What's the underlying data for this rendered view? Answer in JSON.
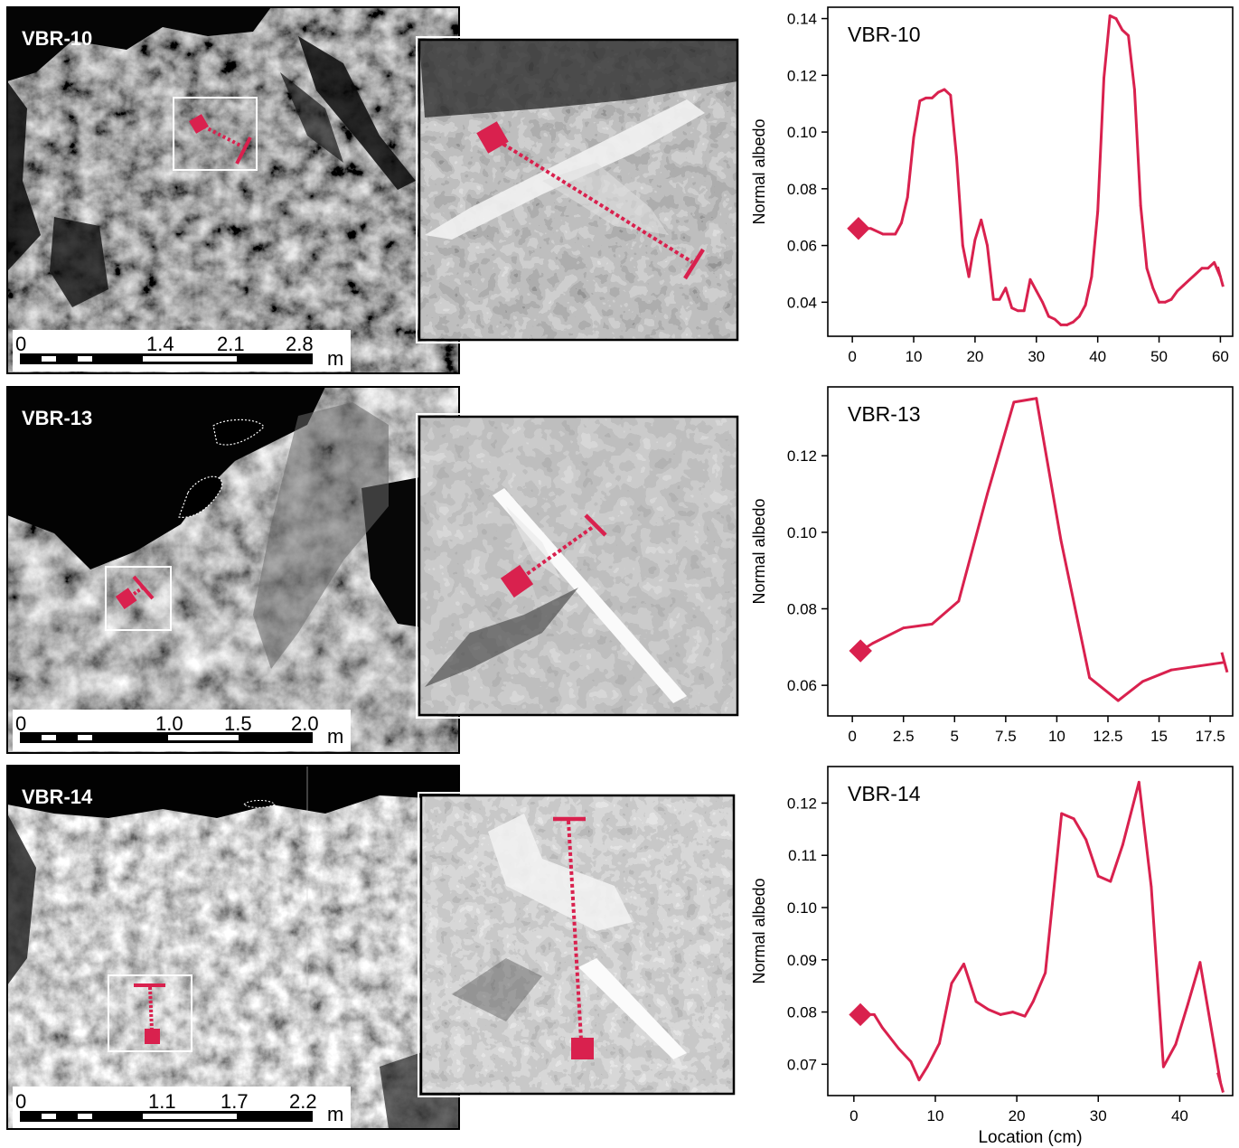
{
  "figure": {
    "accent_color": "#d9214e",
    "rows": [
      {
        "sample_label": "VBR-10",
        "scale_bar": {
          "ticks": [
            "0",
            "1.4",
            "2.1",
            "2.8"
          ],
          "unit": "m"
        }
      },
      {
        "sample_label": "VBR-13",
        "scale_bar": {
          "ticks": [
            "0",
            "1.0",
            "1.5",
            "2.0"
          ],
          "unit": "m"
        }
      },
      {
        "sample_label": "VBR-14",
        "scale_bar": {
          "ticks": [
            "0",
            "1.1",
            "1.7",
            "2.2"
          ],
          "unit": "m"
        }
      }
    ]
  },
  "chart_data": [
    {
      "type": "line",
      "title": "VBR-10",
      "xlabel": "",
      "ylabel": "Normal albedo",
      "xlim": [
        -4,
        62
      ],
      "ylim": [
        0.028,
        0.144
      ],
      "xticks": [
        "0",
        "10",
        "20",
        "30",
        "40",
        "50",
        "60"
      ],
      "yticks": [
        "0.04",
        "0.06",
        "0.08",
        "0.10",
        "0.12",
        "0.14"
      ],
      "color": "#d9214e",
      "x": [
        1,
        3,
        5,
        7,
        8,
        9,
        10,
        11,
        12,
        13,
        14,
        15,
        16,
        17,
        18,
        19,
        20,
        21,
        22,
        23,
        24,
        25,
        26,
        27,
        28,
        29,
        30,
        31,
        32,
        33,
        34,
        35,
        36,
        37,
        38,
        39,
        40,
        41,
        42,
        43,
        44,
        45,
        46,
        47,
        48,
        49,
        50,
        51,
        52,
        53,
        54,
        55,
        56,
        57,
        58,
        59,
        60
      ],
      "y": [
        0.066,
        0.066,
        0.064,
        0.064,
        0.068,
        0.077,
        0.098,
        0.111,
        0.112,
        0.112,
        0.114,
        0.115,
        0.113,
        0.091,
        0.06,
        0.049,
        0.062,
        0.069,
        0.06,
        0.041,
        0.041,
        0.045,
        0.038,
        0.037,
        0.037,
        0.048,
        0.044,
        0.04,
        0.035,
        0.034,
        0.032,
        0.032,
        0.033,
        0.035,
        0.039,
        0.049,
        0.072,
        0.119,
        0.141,
        0.14,
        0.136,
        0.134,
        0.115,
        0.074,
        0.052,
        0.045,
        0.04,
        0.04,
        0.041,
        0.044,
        0.046,
        0.048,
        0.05,
        0.052,
        0.052,
        0.054,
        0.049
      ]
    },
    {
      "type": "line",
      "title": "VBR-13",
      "xlabel": "",
      "ylabel": "Normal albedo",
      "xlim": [
        -1.2,
        18.6
      ],
      "ylim": [
        0.052,
        0.138
      ],
      "xticks": [
        "0",
        "2.5",
        "5",
        "7.5",
        "10",
        "12.5",
        "15",
        "17.5"
      ],
      "yticks": [
        "0.06",
        "0.08",
        "0.10",
        "0.12"
      ],
      "color": "#d9214e",
      "x": [
        0.4,
        1.0,
        2.5,
        3.9,
        5.2,
        6.6,
        7.9,
        9.0,
        10.2,
        11.6,
        13.0,
        14.2,
        15.6,
        18.2
      ],
      "y": [
        0.069,
        0.071,
        0.075,
        0.076,
        0.082,
        0.11,
        0.134,
        0.135,
        0.098,
        0.062,
        0.056,
        0.061,
        0.064,
        0.066
      ]
    },
    {
      "type": "line",
      "title": "VBR-14",
      "xlabel": "Location (cm)",
      "ylabel": "Normal albedo",
      "xlim": [
        -3.2,
        46.5
      ],
      "ylim": [
        0.064,
        0.127
      ],
      "xticks": [
        "0",
        "10",
        "20",
        "30",
        "40"
      ],
      "yticks": [
        "0.07",
        "0.08",
        "0.09",
        "0.10",
        "0.11",
        "0.12"
      ],
      "color": "#d9214e",
      "x": [
        0.8,
        2.5,
        3.5,
        5.5,
        7.0,
        8.0,
        9.0,
        10.5,
        12.0,
        13.5,
        15.0,
        16.5,
        18.0,
        19.5,
        21.0,
        22.0,
        23.5,
        25.5,
        27.0,
        28.5,
        30.0,
        31.5,
        33.0,
        35.0,
        36.5,
        38.0,
        39.5,
        41.0,
        42.5,
        45.0
      ],
      "y": [
        0.0795,
        0.0795,
        0.077,
        0.073,
        0.0705,
        0.067,
        0.0695,
        0.074,
        0.0855,
        0.0892,
        0.082,
        0.0805,
        0.0795,
        0.08,
        0.0792,
        0.082,
        0.0875,
        0.118,
        0.117,
        0.113,
        0.106,
        0.105,
        0.112,
        0.124,
        0.104,
        0.0695,
        0.0738,
        0.0815,
        0.0895,
        0.0665
      ]
    }
  ]
}
